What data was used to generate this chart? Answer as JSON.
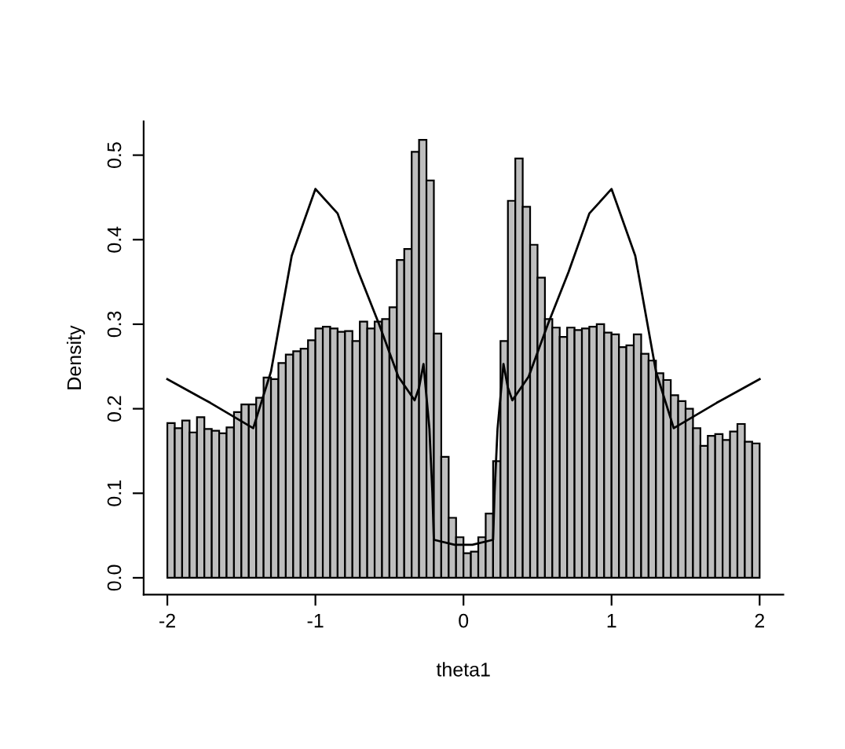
{
  "chart_data": {
    "type": "histogram",
    "xlabel": "theta1",
    "ylabel": "Density",
    "xlim": [
      -2.16,
      2.16
    ],
    "ylim": [
      -0.02,
      0.54
    ],
    "xticks": [
      -2,
      -1,
      0,
      1,
      2
    ],
    "yticks": [
      {
        "value": 0,
        "label": "0.0"
      },
      0.1,
      0.2,
      0.3,
      0.4,
      0.5
    ],
    "grid": false,
    "legend": false,
    "series": [
      {
        "color": "#bebebe",
        "bins": [
          -2.0,
          -1.95,
          -1.9,
          -1.85,
          -1.8,
          -1.75,
          -1.7,
          -1.65,
          -1.6,
          -1.55,
          -1.5,
          -1.45,
          -1.4,
          -1.35,
          -1.3,
          -1.25,
          -1.2,
          -1.15,
          -1.1,
          -1.05,
          -1.0,
          -0.95,
          -0.9,
          -0.85,
          -0.8,
          -0.75,
          -0.7,
          -0.65,
          -0.6,
          -0.55,
          -0.5,
          -0.45,
          -0.4,
          -0.35,
          -0.3,
          -0.25,
          -0.2,
          -0.15,
          -0.1,
          -0.05,
          0.0,
          0.05,
          0.1,
          0.15,
          0.2,
          0.25,
          0.3,
          0.35,
          0.4,
          0.45,
          0.5,
          0.55,
          0.6,
          0.65,
          0.7,
          0.75,
          0.8,
          0.85,
          0.9,
          0.95,
          1.0,
          1.05,
          1.1,
          1.15,
          1.2,
          1.25,
          1.3,
          1.35,
          1.4,
          1.45,
          1.5,
          1.55,
          1.6,
          1.65,
          1.7,
          1.75,
          1.8,
          1.85,
          1.9,
          1.95,
          2.0
        ],
        "values": [
          0.183,
          0.177,
          0.186,
          0.172,
          0.19,
          0.176,
          0.174,
          0.171,
          0.178,
          0.196,
          0.205,
          0.205,
          0.213,
          0.237,
          0.235,
          0.254,
          0.264,
          0.268,
          0.271,
          0.281,
          0.295,
          0.297,
          0.295,
          0.291,
          0.292,
          0.28,
          0.303,
          0.295,
          0.303,
          0.306,
          0.32,
          0.376,
          0.389,
          0.504,
          0.518,
          0.47,
          0.289,
          0.143,
          0.071,
          0.048,
          0.029,
          0.031,
          0.048,
          0.076,
          0.138,
          0.28,
          0.446,
          0.496,
          0.439,
          0.394,
          0.355,
          0.306,
          0.296,
          0.285,
          0.296,
          0.293,
          0.295,
          0.297,
          0.3,
          0.29,
          0.288,
          0.273,
          0.275,
          0.288,
          0.265,
          0.257,
          0.242,
          0.234,
          0.216,
          0.209,
          0.2,
          0.177,
          0.156,
          0.168,
          0.17,
          0.163,
          0.173,
          0.182,
          0.161,
          0.159
        ]
      },
      {
        "type": "line",
        "color": "#000000",
        "x": [
          -2.0,
          -1.71,
          -1.42,
          -1.3,
          -1.16,
          -1.0,
          -0.85,
          -0.71,
          -0.57,
          -0.44,
          -0.33,
          -0.3,
          -0.27,
          -0.23,
          -0.21,
          -0.2,
          -0.06,
          0.06,
          0.2,
          0.21,
          0.23,
          0.27,
          0.3,
          0.33,
          0.44,
          0.57,
          0.71,
          0.85,
          1.0,
          1.16,
          1.3,
          1.42,
          1.71,
          2.0
        ],
        "values": [
          0.235,
          0.207,
          0.177,
          0.244,
          0.381,
          0.46,
          0.431,
          0.362,
          0.3,
          0.238,
          0.21,
          0.225,
          0.253,
          0.176,
          0.101,
          0.045,
          0.039,
          0.039,
          0.045,
          0.101,
          0.176,
          0.253,
          0.225,
          0.21,
          0.238,
          0.3,
          0.362,
          0.431,
          0.46,
          0.381,
          0.244,
          0.177,
          0.207,
          0.235
        ]
      }
    ]
  }
}
